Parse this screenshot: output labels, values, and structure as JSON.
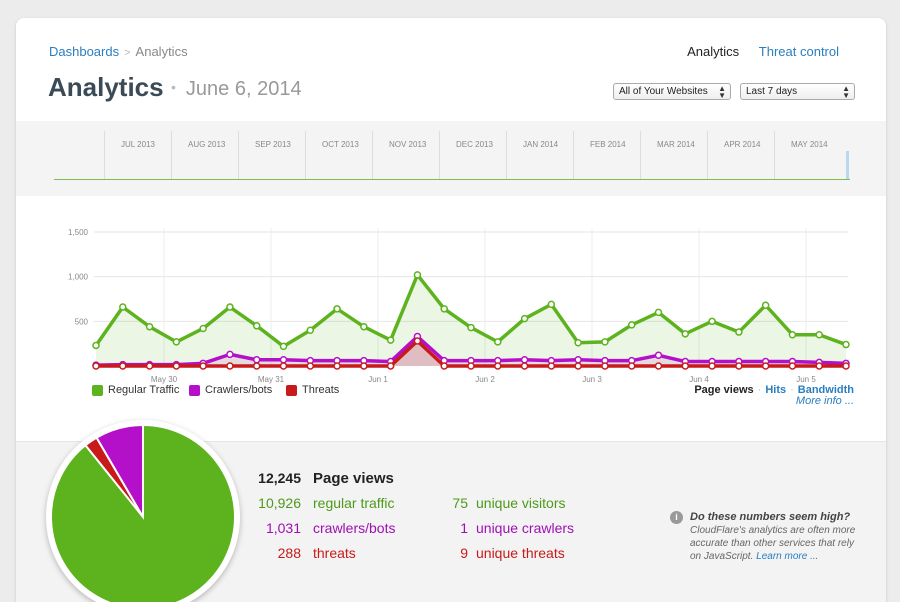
{
  "breadcrumb": {
    "parent": "Dashboards",
    "separator": ">",
    "current": "Analytics"
  },
  "topnav": {
    "active": "Analytics",
    "link": "Threat control"
  },
  "header": {
    "title": "Analytics",
    "dot": "•",
    "date": "June 6, 2014"
  },
  "filters": {
    "site_select": "All of Your Websites",
    "range_select": "Last 7 days"
  },
  "timeline": {
    "months": [
      "JUL 2013",
      "AUG 2013",
      "SEP 2013",
      "OCT 2013",
      "NOV 2013",
      "DEC 2013",
      "JAN 2014",
      "FEB 2014",
      "MAR 2014",
      "APR 2014",
      "MAY 2014"
    ]
  },
  "chart_data": {
    "type": "area",
    "ylim": [
      0,
      1500
    ],
    "yticks": [
      500,
      1000,
      1500
    ],
    "ytick_labels": [
      "500",
      "1,000",
      "1,500"
    ],
    "xlabels": [
      "May 30",
      "May 31",
      "Jun 1",
      "Jun 2",
      "Jun 3",
      "Jun 4",
      "Jun 5"
    ],
    "grid": true,
    "series": [
      {
        "name": "Regular Traffic",
        "color": "#5cb31e",
        "values": [
          230,
          660,
          440,
          270,
          420,
          660,
          450,
          220,
          400,
          640,
          440,
          290,
          1020,
          640,
          430,
          270,
          530,
          690,
          260,
          270,
          460,
          600,
          360,
          500,
          380,
          680,
          350,
          350,
          240
        ]
      },
      {
        "name": "Crawlers/bots",
        "color": "#b40fc9",
        "values": [
          10,
          15,
          15,
          15,
          30,
          130,
          70,
          70,
          60,
          60,
          60,
          50,
          330,
          60,
          60,
          60,
          70,
          60,
          70,
          60,
          60,
          120,
          50,
          50,
          50,
          50,
          50,
          40,
          30
        ]
      },
      {
        "name": "Threats",
        "color": "#c81a1a",
        "values": [
          0,
          0,
          0,
          0,
          0,
          0,
          0,
          0,
          0,
          0,
          0,
          0,
          280,
          0,
          0,
          0,
          0,
          0,
          0,
          0,
          0,
          0,
          0,
          0,
          0,
          0,
          0,
          0,
          0
        ]
      }
    ]
  },
  "legend": {
    "regular": "Regular Traffic",
    "crawlers": "Crawlers/bots",
    "threats": "Threats"
  },
  "metric_tabs": {
    "page_views": "Page views",
    "sep": "·",
    "hits": "Hits",
    "bandwidth": "Bandwidth",
    "more": "More info ..."
  },
  "stats": {
    "total_num": "12,245",
    "total_label": "Page views",
    "regular_num": "10,926",
    "regular_label": "regular traffic",
    "crawlers_num": "1,031",
    "crawlers_label": "crawlers/bots",
    "threats_num": "288",
    "threats_label": "threats",
    "uv_num": "75",
    "uv_label": "unique visitors",
    "uc_num": "1",
    "uc_label": "unique crawlers",
    "ut_num": "9",
    "ut_label": "unique threats"
  },
  "pie": {
    "regular": 10926,
    "crawlers": 1031,
    "threats": 288
  },
  "colors": {
    "regular": "#5cb31e",
    "crawlers": "#b40fc9",
    "threats": "#c81a1a",
    "link": "#2a7ec0"
  },
  "note": {
    "icon": "i",
    "heading": "Do these numbers seem high?",
    "body": "CloudFlare's analytics are often more accurate than other services that rely on JavaScript.",
    "link": "Learn more ..."
  }
}
